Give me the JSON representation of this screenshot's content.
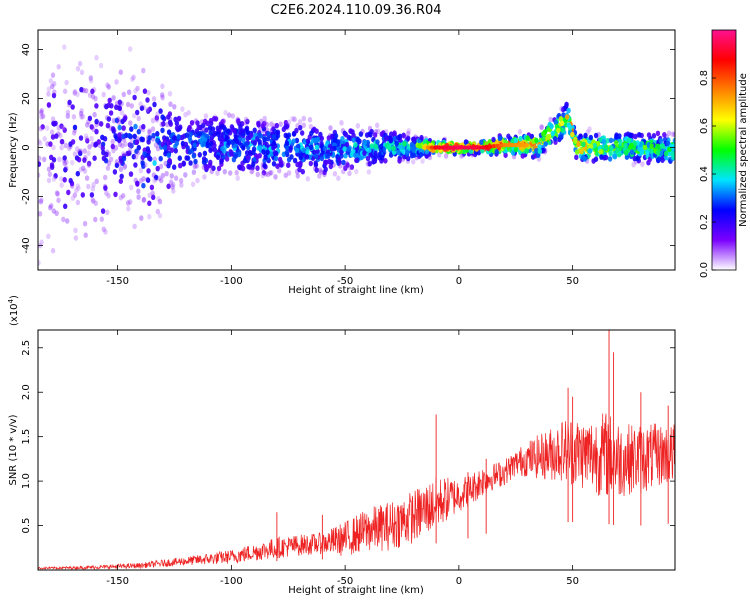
{
  "title": "C2E6.2024.110.09.36.R04",
  "chart_data": [
    {
      "type": "heatmap",
      "xlabel": "Height of straight line (km)",
      "ylabel": "Frequency (Hz)",
      "xlim": [
        -185,
        95
      ],
      "ylim": [
        -50,
        48
      ],
      "x_ticks": [
        -150,
        -100,
        -50,
        0,
        50
      ],
      "x_tick_labels": [
        "-150",
        "-100",
        "-50",
        "0",
        "50"
      ],
      "y_ticks": [
        -40,
        -20,
        0,
        20,
        40
      ],
      "y_tick_labels": [
        "-40",
        "-20",
        "0",
        "20",
        "40"
      ],
      "colorbar": {
        "label": "Normalized spectral amplitude",
        "range": [
          0,
          1
        ],
        "ticks": [
          0.0,
          0.2,
          0.4,
          0.6,
          0.8
        ],
        "tick_labels": [
          "0.0",
          "0.2",
          "0.4",
          "0.6",
          "0.8"
        ],
        "colors": [
          "#ffffff",
          "#7a00ff",
          "#0000ff",
          "#00e5ff",
          "#00ff00",
          "#ffff00",
          "#ff8000",
          "#ff0000",
          "#ff1090"
        ]
      },
      "ridge": [
        {
          "x": -185,
          "center": 0,
          "spread": 40,
          "amp": 0.15
        },
        {
          "x": -140,
          "center": 0,
          "spread": 28,
          "amp": 0.25
        },
        {
          "x": -120,
          "center": 0,
          "spread": 12,
          "amp": 0.3
        },
        {
          "x": -100,
          "center": 1,
          "spread": 11,
          "amp": 0.32
        },
        {
          "x": -80,
          "center": 0,
          "spread": 10,
          "amp": 0.34
        },
        {
          "x": -60,
          "center": -1,
          "spread": 9,
          "amp": 0.35
        },
        {
          "x": -40,
          "center": 0,
          "spread": 7,
          "amp": 0.38
        },
        {
          "x": -20,
          "center": 0,
          "spread": 4,
          "amp": 0.45
        },
        {
          "x": -10,
          "center": 0,
          "spread": 2,
          "amp": 0.9
        },
        {
          "x": 0,
          "center": 0,
          "spread": 2,
          "amp": 0.95
        },
        {
          "x": 10,
          "center": 0,
          "spread": 2,
          "amp": 0.92
        },
        {
          "x": 20,
          "center": 1,
          "spread": 3,
          "amp": 0.75
        },
        {
          "x": 35,
          "center": 1,
          "spread": 4,
          "amp": 0.7
        },
        {
          "x": 48,
          "center": 12,
          "spread": 5,
          "amp": 0.65
        },
        {
          "x": 52,
          "center": 0,
          "spread": 4,
          "amp": 0.8
        },
        {
          "x": 65,
          "center": 0,
          "spread": 5,
          "amp": 0.55
        },
        {
          "x": 80,
          "center": 0,
          "spread": 5,
          "amp": 0.5
        },
        {
          "x": 95,
          "center": -1,
          "spread": 5,
          "amp": 0.5
        }
      ]
    },
    {
      "type": "line",
      "xlabel": "Height of straight line (km)",
      "ylabel": "SNR (10 * v/v)",
      "y_multiplier": "(x10",
      "y_multiplier_exp": "4",
      "y_multiplier_close": ")",
      "xlim": [
        -185,
        95
      ],
      "ylim": [
        0,
        2.7
      ],
      "x_ticks": [
        -150,
        -100,
        -50,
        0,
        50
      ],
      "x_tick_labels": [
        "-150",
        "-100",
        "-50",
        "0",
        "50"
      ],
      "y_ticks": [
        0.5,
        1.0,
        1.5,
        2.0,
        2.5
      ],
      "y_tick_labels": [
        "0.5",
        "1.0",
        "1.5",
        "2.0",
        "2.5"
      ],
      "color": "#ee2222",
      "series": [
        {
          "x": [
            -185,
            -160,
            -140,
            -120,
            -100,
            -90,
            -80,
            -70,
            -60,
            -50,
            -45,
            -40,
            -30,
            -20,
            -10,
            -5,
            0,
            5,
            10,
            15,
            20,
            25,
            30,
            40,
            45,
            50,
            55,
            60,
            65,
            70,
            75,
            80,
            90,
            95
          ],
          "mean": [
            0.02,
            0.03,
            0.05,
            0.1,
            0.15,
            0.2,
            0.25,
            0.28,
            0.3,
            0.35,
            0.4,
            0.45,
            0.5,
            0.6,
            0.75,
            0.8,
            0.85,
            0.9,
            1.0,
            1.05,
            1.1,
            1.2,
            1.25,
            1.3,
            1.35,
            1.35,
            1.3,
            1.3,
            1.3,
            1.25,
            1.25,
            1.25,
            1.3,
            1.3
          ],
          "noise": [
            0.01,
            0.02,
            0.03,
            0.05,
            0.08,
            0.1,
            0.12,
            0.12,
            0.12,
            0.2,
            0.22,
            0.25,
            0.28,
            0.3,
            0.3,
            0.25,
            0.2,
            0.18,
            0.18,
            0.15,
            0.15,
            0.15,
            0.2,
            0.3,
            0.35,
            0.4,
            0.4,
            0.45,
            0.5,
            0.45,
            0.4,
            0.4,
            0.35,
            0.35
          ]
        }
      ],
      "spikes": [
        {
          "x": -80,
          "y": 0.65
        },
        {
          "x": -60,
          "y": 0.62
        },
        {
          "x": -10,
          "y": 1.75
        },
        {
          "x": 4,
          "y": 1.1
        },
        {
          "x": 12,
          "y": 1.25
        },
        {
          "x": 48,
          "y": 2.05
        },
        {
          "x": 50,
          "y": 1.95
        },
        {
          "x": 66,
          "y": 2.7
        },
        {
          "x": 68,
          "y": 2.45
        },
        {
          "x": 80,
          "y": 2.0
        },
        {
          "x": 92,
          "y": 1.85
        }
      ]
    }
  ]
}
